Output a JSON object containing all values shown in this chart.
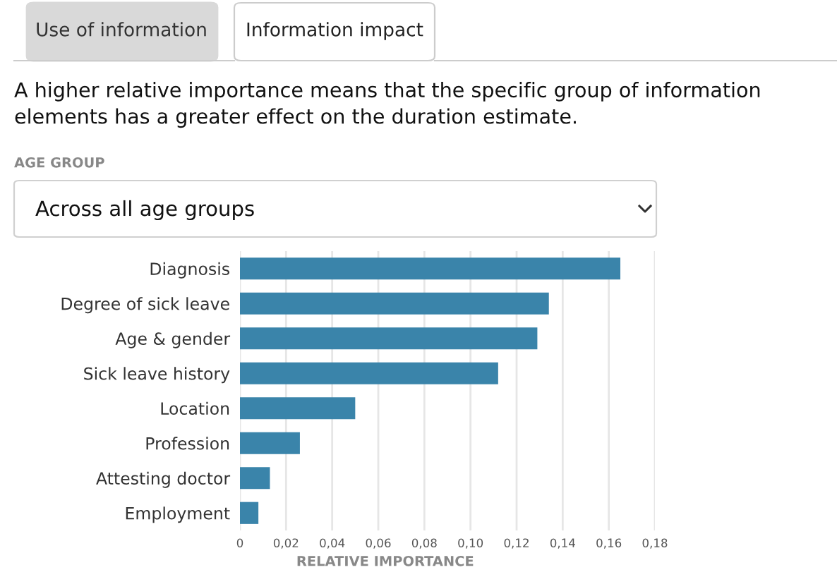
{
  "chart_data": {
    "type": "bar",
    "orientation": "horizontal",
    "subtitle": "A higher relative importance means that the specific group of information elements has a greater effect on the duration estimate.",
    "annotations": [
      "Use of information",
      "Information impact",
      "AGE GROUP",
      "Across all age groups"
    ],
    "categories": [
      "Diagnosis",
      "Degree of sick leave",
      "Age & gender",
      "Sick leave history",
      "Location",
      "Profession",
      "Attesting doctor",
      "Employment"
    ],
    "values": [
      0.165,
      0.134,
      0.129,
      0.112,
      0.05,
      0.026,
      0.013,
      0.008
    ],
    "color": "#3a84aa",
    "xlabel": "RELATIVE IMPORTANCE",
    "xlim": [
      0,
      0.18
    ],
    "xticks": [
      0,
      {
        "value": 0.02,
        "label": "0,02"
      },
      {
        "value": 0.04,
        "label": "0,04"
      },
      {
        "value": 0.06,
        "label": "0,06"
      },
      {
        "value": 0.08,
        "label": "0,08"
      },
      {
        "value": 0.1,
        "label": "0,10"
      },
      {
        "value": 0.12,
        "label": "0,12"
      },
      {
        "value": 0.14,
        "label": "0,14"
      },
      {
        "value": 0.16,
        "label": "0,16"
      },
      {
        "value": 0.18,
        "label": "0,18"
      }
    ],
    "grid": "x"
  }
}
